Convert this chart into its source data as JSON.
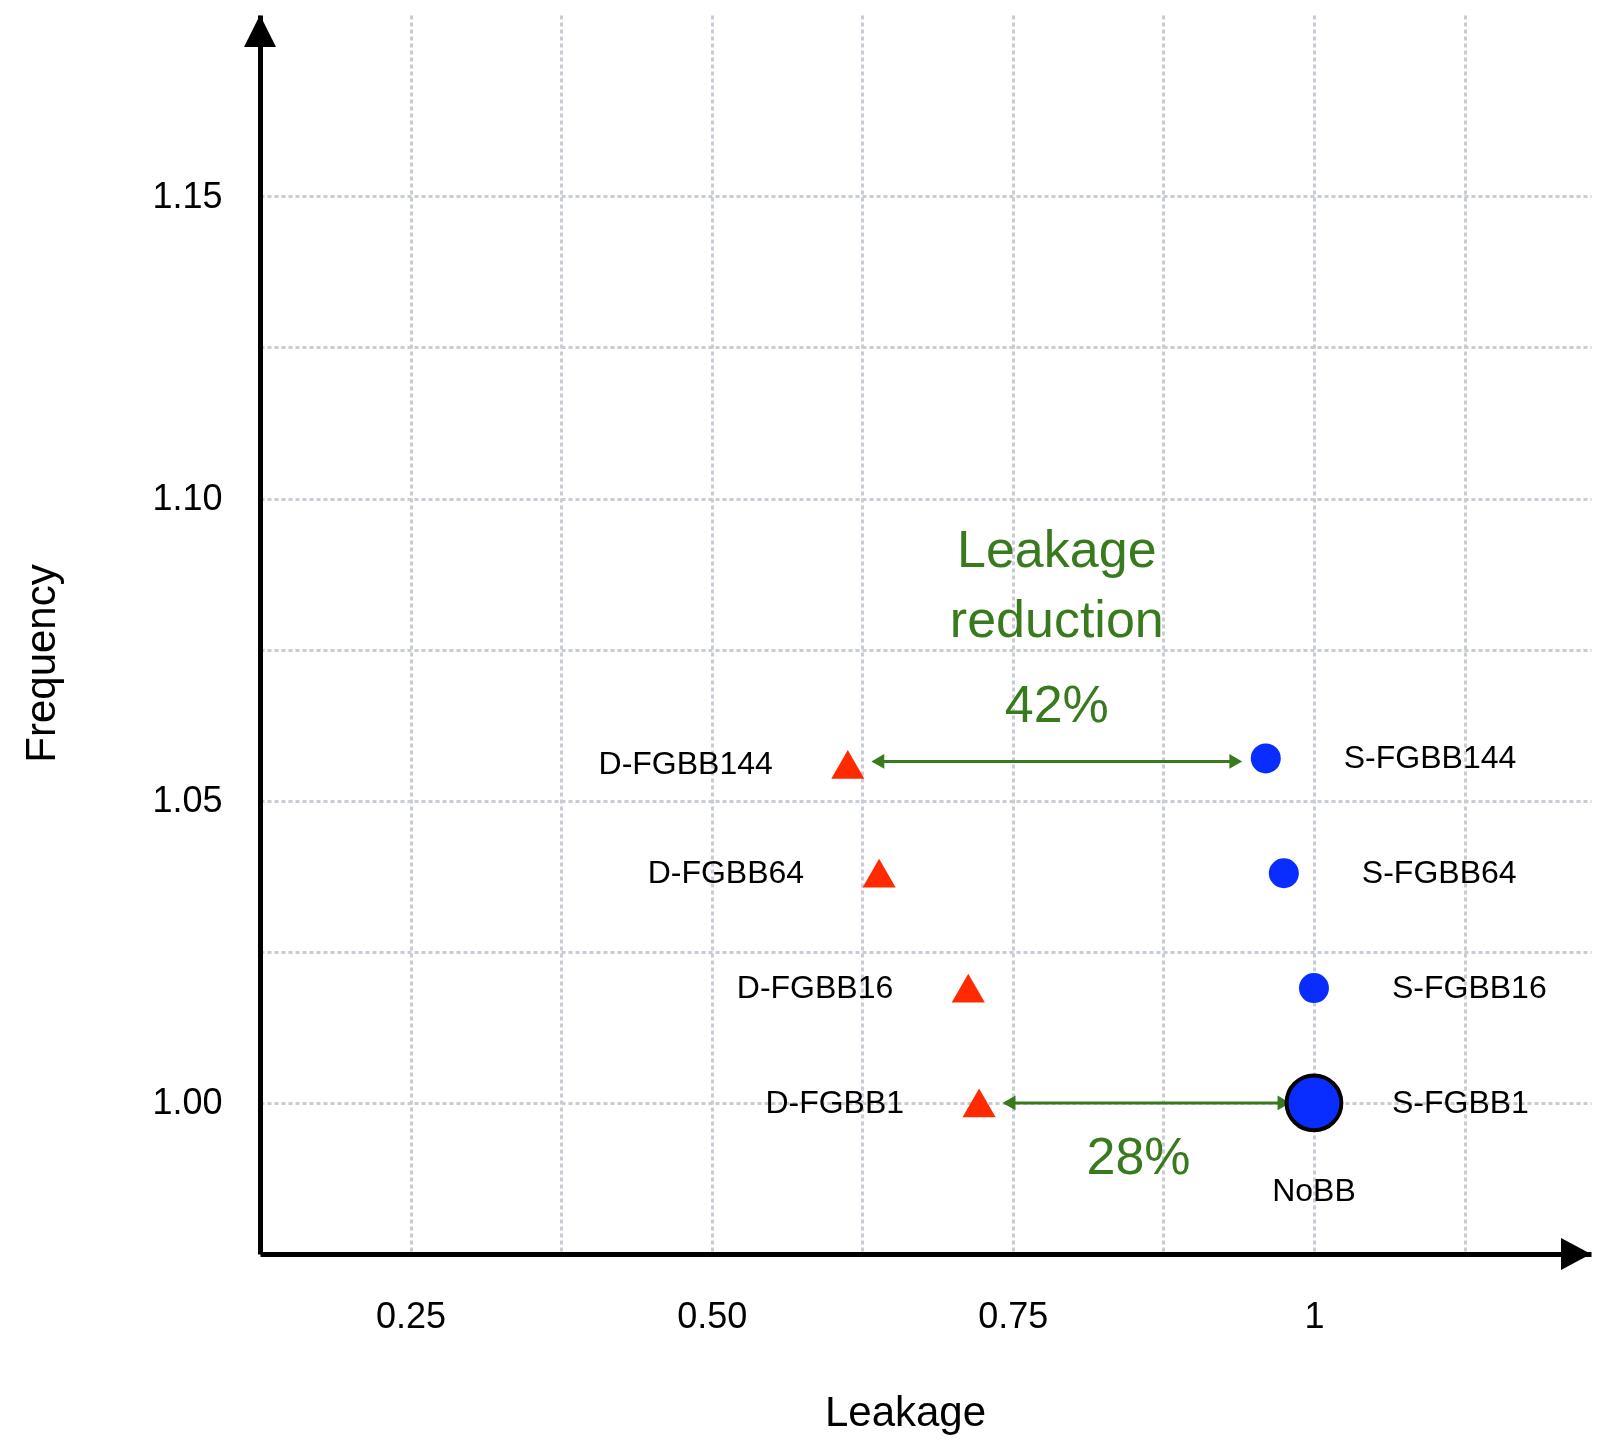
{
  "chart_data": {
    "type": "scatter",
    "xlabel": "Leakage",
    "ylabel": "Frequency",
    "xlim": [
      0.125,
      1.23
    ],
    "ylim": [
      0.975,
      1.18
    ],
    "xticks": [
      0.25,
      {
        "value": 0.375,
        "label": null
      },
      {
        "value": 0.5,
        "label": "0.50"
      },
      {
        "value": 0.625,
        "label": null
      },
      0.75,
      {
        "value": 0.875,
        "label": null
      },
      1,
      {
        "value": 1.125,
        "label": null
      }
    ],
    "yticks": [
      {
        "value": 1.0,
        "label": "1.00"
      },
      {
        "value": 1.025,
        "label": null
      },
      1.05,
      {
        "value": 1.075,
        "label": null
      },
      {
        "value": 1.1,
        "label": "1.10"
      },
      {
        "value": 1.125,
        "label": null
      },
      1.15
    ],
    "grid": true,
    "series": [
      {
        "color": "#ff2a00",
        "marker": "triangle",
        "x": [
          0.613,
          0.639,
          0.713,
          0.722
        ],
        "values": [
          1.056,
          1.038,
          1.019,
          1.0
        ]
      },
      {
        "color": "#0a2dff",
        "marker": "circle",
        "x": [
          0.96,
          0.975,
          1.0
        ],
        "values": [
          1.057,
          1.038,
          1.019
        ]
      },
      {
        "color": "#0a2dff",
        "marker": "circle",
        "x": [
          1.0
        ],
        "values": [
          1.0
        ]
      }
    ],
    "annotations": [
      "D-FGBB144",
      "D-FGBB64",
      "D-FGBB16",
      "D-FGBB1",
      "S-FGBB144",
      "S-FGBB64",
      "S-FGBB16",
      "S-FGBB1",
      "NoBB",
      "Leakage reduction",
      "42%",
      "28%"
    ]
  }
}
